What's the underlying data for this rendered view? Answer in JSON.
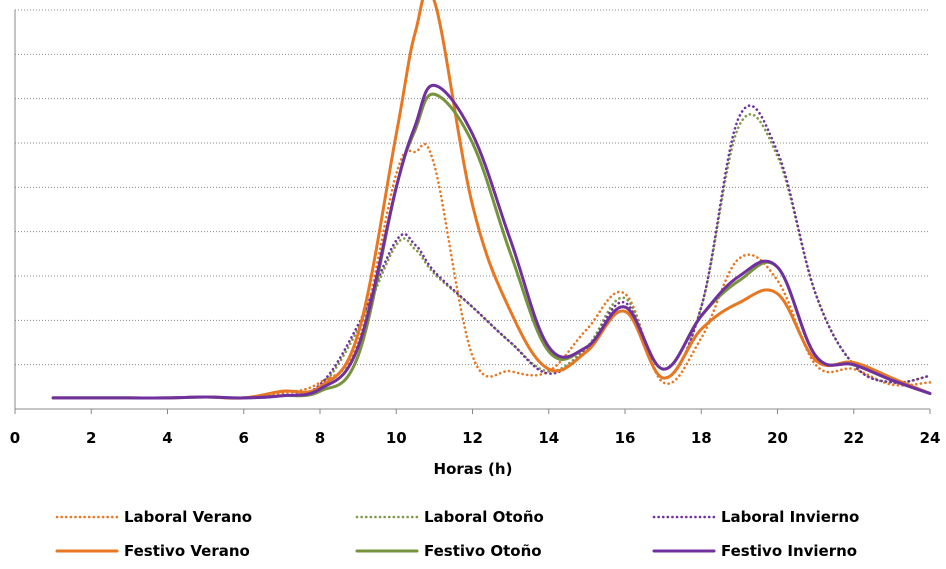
{
  "chart_data": {
    "type": "line",
    "xlabel": "Horas (h)",
    "ylabel": "",
    "xlim": [
      0,
      24
    ],
    "ylim": [
      0,
      9
    ],
    "x_ticks": [
      0,
      2,
      4,
      6,
      8,
      10,
      12,
      14,
      16,
      18,
      20,
      22,
      24
    ],
    "y_grid": [
      1,
      2,
      3,
      4,
      5,
      6,
      7,
      8,
      9
    ],
    "grid": "horizontal-dotted",
    "legend_position": "bottom",
    "x": [
      1,
      2,
      3,
      4,
      5,
      6,
      7,
      8,
      9,
      10,
      10.5,
      11,
      12,
      13,
      14,
      15,
      16,
      17,
      18,
      19,
      20,
      21,
      22,
      23,
      24
    ],
    "series": [
      {
        "name": "Laboral Verano",
        "color": "#E87722",
        "style": "dotted",
        "values": [
          0.25,
          0.25,
          0.25,
          0.25,
          0.27,
          0.25,
          0.35,
          0.6,
          1.5,
          5.3,
          5.8,
          5.5,
          1.2,
          0.85,
          0.85,
          1.8,
          2.6,
          0.6,
          1.6,
          3.4,
          2.9,
          1.0,
          0.9,
          0.55,
          0.6
        ]
      },
      {
        "name": "Laboral Otoño",
        "color": "#7F9A48",
        "style": "dotted",
        "values": [
          0.25,
          0.25,
          0.25,
          0.25,
          0.27,
          0.25,
          0.3,
          0.5,
          1.8,
          3.7,
          3.6,
          3.05,
          2.3,
          1.5,
          0.85,
          1.4,
          2.5,
          0.7,
          2.3,
          6.4,
          5.7,
          2.6,
          1.0,
          0.6,
          0.75
        ]
      },
      {
        "name": "Laboral Invierno",
        "color": "#7030A0",
        "style": "dotted",
        "values": [
          0.25,
          0.25,
          0.25,
          0.25,
          0.27,
          0.25,
          0.3,
          0.55,
          1.9,
          3.8,
          3.7,
          3.1,
          2.3,
          1.5,
          0.8,
          1.35,
          2.4,
          0.7,
          2.3,
          6.6,
          5.8,
          2.6,
          1.0,
          0.6,
          0.75
        ]
      },
      {
        "name": "Festivo Verano",
        "color": "#E87722",
        "style": "solid",
        "values": [
          0.25,
          0.25,
          0.25,
          0.25,
          0.27,
          0.25,
          0.4,
          0.5,
          1.7,
          6.2,
          8.5,
          9.2,
          4.6,
          2.2,
          0.9,
          1.3,
          2.2,
          0.7,
          1.8,
          2.4,
          2.6,
          1.1,
          1.05,
          0.7,
          0.35
        ]
      },
      {
        "name": "Festivo Otoño",
        "color": "#77933C",
        "style": "solid",
        "values": [
          0.25,
          0.25,
          0.25,
          0.25,
          0.27,
          0.25,
          0.3,
          0.4,
          1.2,
          5.0,
          6.3,
          7.1,
          6.0,
          3.5,
          1.3,
          1.4,
          2.3,
          0.9,
          2.1,
          2.9,
          3.2,
          1.2,
          1.0,
          0.65,
          0.35
        ]
      },
      {
        "name": "Festivo Invierno",
        "color": "#7030A0",
        "style": "solid",
        "values": [
          0.25,
          0.25,
          0.25,
          0.25,
          0.27,
          0.25,
          0.3,
          0.45,
          1.4,
          5.0,
          6.4,
          7.3,
          6.2,
          3.8,
          1.4,
          1.4,
          2.3,
          0.9,
          2.1,
          3.0,
          3.2,
          1.2,
          1.0,
          0.65,
          0.35
        ]
      }
    ]
  }
}
